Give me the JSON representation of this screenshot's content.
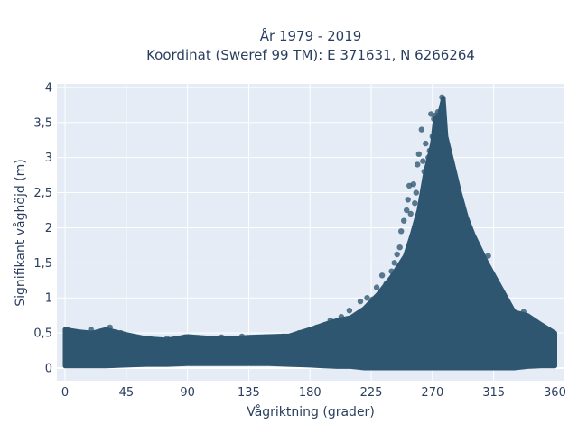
{
  "chart_data": {
    "type": "scatter",
    "title_line1": "År 1979 - 2019",
    "title_line2": "Koordinat (Sweref 99 TM): E 371631, N 6266264",
    "xlabel": "Vågriktning (grader)",
    "ylabel": "Signifikant våghöjd (m)",
    "xlim": [
      -6,
      367
    ],
    "ylim": [
      -0.18,
      4.05
    ],
    "x_ticks": [
      0,
      45,
      90,
      135,
      180,
      225,
      270,
      315,
      360
    ],
    "x_tick_labels": [
      "0",
      "45",
      "90",
      "135",
      "180",
      "225",
      "270",
      "315",
      "360"
    ],
    "y_ticks": [
      0,
      0.5,
      1,
      1.5,
      2,
      2.5,
      3,
      3.5,
      4
    ],
    "y_tick_labels": [
      "0",
      "0,5",
      "1",
      "1,5",
      "2",
      "2,5",
      "3",
      "3,5",
      "4"
    ],
    "grid": true,
    "legend": "none",
    "marker_color": "#2e5670",
    "plot_bg": "#e5ecf6",
    "envelope": {
      "x": [
        0,
        10,
        20,
        30,
        45,
        60,
        75,
        90,
        105,
        120,
        135,
        150,
        165,
        180,
        190,
        200,
        210,
        220,
        230,
        240,
        250,
        255,
        260,
        265,
        270,
        272,
        275,
        278,
        280,
        285,
        290,
        295,
        300,
        310,
        320,
        330,
        340,
        350,
        360
      ],
      "y_max": [
        0.55,
        0.52,
        0.5,
        0.55,
        0.48,
        0.42,
        0.4,
        0.45,
        0.43,
        0.42,
        0.44,
        0.45,
        0.46,
        0.55,
        0.62,
        0.68,
        0.72,
        0.85,
        1.05,
        1.3,
        1.6,
        1.9,
        2.25,
        2.8,
        3.2,
        3.55,
        3.6,
        3.85,
        3.3,
        2.9,
        2.5,
        2.15,
        1.9,
        1.5,
        1.15,
        0.8,
        0.75,
        0.62,
        0.5
      ],
      "y_min": [
        0.03,
        0.03,
        0.03,
        0.03,
        0.04,
        0.05,
        0.05,
        0.06,
        0.06,
        0.06,
        0.06,
        0.06,
        0.05,
        0.04,
        0.03,
        0.02,
        0.02,
        0.0,
        0.0,
        0.0,
        0.0,
        0.0,
        0.0,
        0.0,
        0.0,
        0.0,
        0.0,
        0.0,
        0.0,
        0.0,
        0.0,
        0.0,
        0.0,
        0.0,
        0.0,
        0.0,
        0.02,
        0.03,
        0.03
      ]
    },
    "points": [
      [
        2,
        0.55
      ],
      [
        5,
        0.52
      ],
      [
        12,
        0.5
      ],
      [
        19,
        0.55
      ],
      [
        28,
        0.5
      ],
      [
        33,
        0.58
      ],
      [
        41,
        0.5
      ],
      [
        52,
        0.44
      ],
      [
        63,
        0.41
      ],
      [
        75,
        0.42
      ],
      [
        88,
        0.44
      ],
      [
        98,
        0.43
      ],
      [
        115,
        0.44
      ],
      [
        130,
        0.45
      ],
      [
        147,
        0.44
      ],
      [
        160,
        0.45
      ],
      [
        172,
        0.5
      ],
      [
        185,
        0.58
      ],
      [
        195,
        0.68
      ],
      [
        203,
        0.73
      ],
      [
        209,
        0.82
      ],
      [
        213,
        0.65
      ],
      [
        217,
        0.95
      ],
      [
        220,
        0.72
      ],
      [
        222,
        1.0
      ],
      [
        226,
        0.98
      ],
      [
        229,
        1.15
      ],
      [
        233,
        1.32
      ],
      [
        236,
        1.2
      ],
      [
        240,
        1.38
      ],
      [
        242,
        1.5
      ],
      [
        244,
        1.62
      ],
      [
        246,
        1.72
      ],
      [
        247,
        1.95
      ],
      [
        249,
        2.1
      ],
      [
        251,
        2.25
      ],
      [
        253,
        2.6
      ],
      [
        254,
        2.2
      ],
      [
        256,
        2.62
      ],
      [
        257,
        2.35
      ],
      [
        258,
        2.5
      ],
      [
        259,
        2.9
      ],
      [
        260,
        3.05
      ],
      [
        262,
        3.4
      ],
      [
        263,
        2.95
      ],
      [
        264,
        2.8
      ],
      [
        265,
        3.2
      ],
      [
        266,
        2.65
      ],
      [
        267,
        3.0
      ],
      [
        268,
        3.1
      ],
      [
        269,
        3.62
      ],
      [
        270,
        3.3
      ],
      [
        271,
        3.55
      ],
      [
        272,
        3.6
      ],
      [
        273,
        3.08
      ],
      [
        274,
        3.65
      ],
      [
        275,
        3.4
      ],
      [
        276,
        3.3
      ],
      [
        277,
        3.86
      ],
      [
        278,
        3.5
      ],
      [
        279,
        3.1
      ],
      [
        280,
        3.2
      ],
      [
        281,
        3.0
      ],
      [
        282,
        2.85
      ],
      [
        283,
        2.7
      ],
      [
        284,
        2.95
      ],
      [
        285,
        2.6
      ],
      [
        286,
        2.45
      ],
      [
        287,
        2.35
      ],
      [
        288,
        2.48
      ],
      [
        290,
        2.3
      ],
      [
        292,
        2.2
      ],
      [
        294,
        2.05
      ],
      [
        296,
        1.95
      ],
      [
        298,
        1.85
      ],
      [
        300,
        1.8
      ],
      [
        302,
        1.72
      ],
      [
        304,
        1.6
      ],
      [
        306,
        1.55
      ],
      [
        309,
        1.42
      ],
      [
        312,
        1.3
      ],
      [
        315,
        1.25
      ],
      [
        318,
        1.1
      ],
      [
        321,
        1.0
      ],
      [
        323,
        0.98
      ],
      [
        326,
        0.9
      ],
      [
        330,
        0.8
      ],
      [
        333,
        0.72
      ],
      [
        337,
        0.8
      ],
      [
        341,
        0.62
      ],
      [
        345,
        0.6
      ],
      [
        350,
        0.55
      ],
      [
        355,
        0.55
      ],
      [
        359,
        0.5
      ],
      [
        311,
        1.6
      ],
      [
        318,
        1.15
      ],
      [
        238,
        1.05
      ],
      [
        252,
        2.4
      ],
      [
        286,
        2.5
      ]
    ]
  }
}
